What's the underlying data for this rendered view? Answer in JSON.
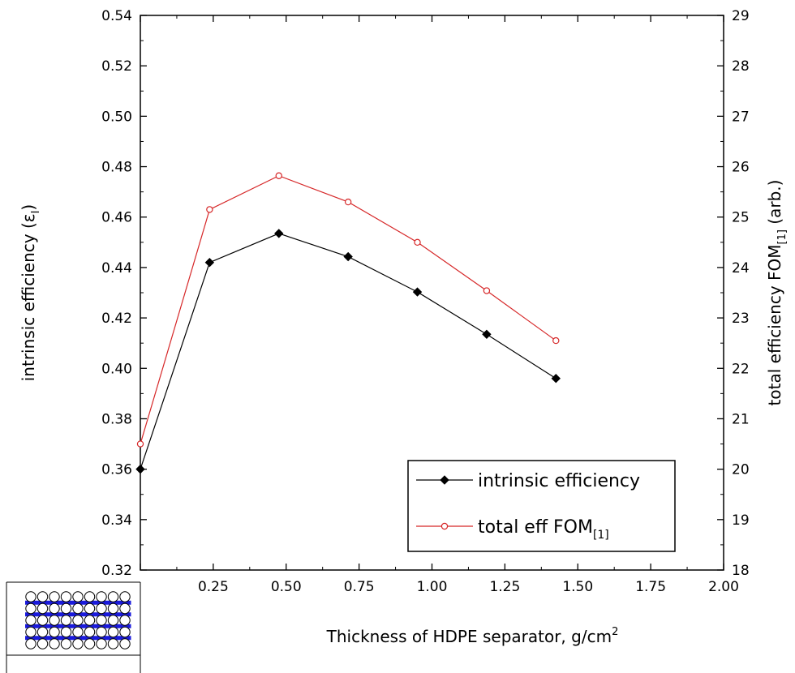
{
  "chart_data": {
    "type": "line",
    "x": [
      0.0,
      0.2375,
      0.475,
      0.7125,
      0.95,
      1.1875,
      1.425
    ],
    "xlabel_main": "Thickness of HDPE separator, g/cm",
    "xlabel_sup": "2",
    "xlim": [
      0.0,
      2.0
    ],
    "xticks": [
      0.0,
      0.25,
      0.5,
      0.75,
      1.0,
      1.25,
      1.5,
      1.75,
      2.0
    ],
    "xtick_labels": [
      "",
      "0.25",
      "0.50",
      "0.75",
      "1.00",
      "1.25",
      "1.50",
      "1.75",
      "2.00"
    ],
    "y_left": {
      "label_main": "intrinsic efficiency (ε",
      "label_sub": "I",
      "label_end": ")",
      "lim": [
        0.32,
        0.54
      ],
      "ticks": [
        0.32,
        0.34,
        0.36,
        0.38,
        0.4,
        0.42,
        0.44,
        0.46,
        0.48,
        0.5,
        0.52,
        0.54
      ],
      "tick_labels": [
        "0.32",
        "0.34",
        "0.36",
        "0.38",
        "0.40",
        "0.42",
        "0.44",
        "0.46",
        "0.48",
        "0.50",
        "0.52",
        "0.54"
      ]
    },
    "y_right": {
      "label_main": "total efficiency FOM",
      "label_sub": "[1]",
      "label_end": "  (arb.)",
      "lim": [
        18,
        29
      ],
      "ticks": [
        18,
        19,
        20,
        21,
        22,
        23,
        24,
        25,
        26,
        27,
        28,
        29
      ],
      "tick_labels": [
        "18",
        "19",
        "20",
        "21",
        "22",
        "23",
        "24",
        "25",
        "26",
        "27",
        "28",
        "29"
      ]
    },
    "series": [
      {
        "name": "intrinsic efficiency",
        "name_sub": "",
        "axis": "left",
        "color": "#000000",
        "marker": "filled-diamond",
        "values": [
          0.36,
          0.442,
          0.4535,
          0.4443,
          0.4303,
          0.4135,
          0.396
        ]
      },
      {
        "name": "total eff FOM",
        "name_sub": "[1]",
        "axis": "right",
        "color": "#d62728",
        "marker": "open-circle",
        "values": [
          20.5,
          25.15,
          25.82,
          25.3,
          24.5,
          23.54,
          22.55
        ]
      }
    ],
    "legend_position": "bottom-right",
    "grid": false
  },
  "inset": {
    "icon": "detector-stack-icon",
    "rows": 5,
    "cols": 9,
    "layer_color": "#1a1adb"
  }
}
